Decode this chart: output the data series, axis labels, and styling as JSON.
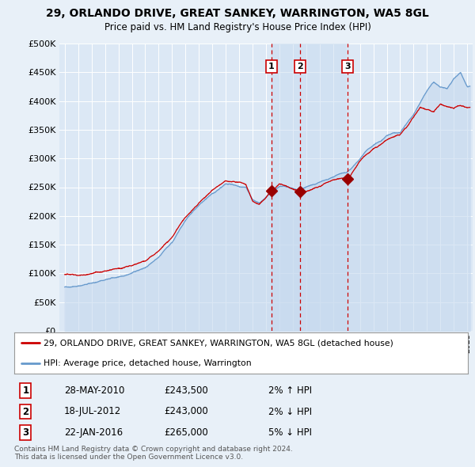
{
  "title": "29, ORLANDO DRIVE, GREAT SANKEY, WARRINGTON, WA5 8GL",
  "subtitle": "Price paid vs. HM Land Registry's House Price Index (HPI)",
  "ylim": [
    0,
    500000
  ],
  "yticks": [
    0,
    50000,
    100000,
    150000,
    200000,
    250000,
    300000,
    350000,
    400000,
    450000,
    500000
  ],
  "background_color": "#e8f0f8",
  "plot_bg": "#dce8f5",
  "grid_color": "#c8d8e8",
  "sale_color": "#cc0000",
  "hpi_color": "#6699cc",
  "hpi_fill_color": "#dce8f5",
  "vline_color": "#cc0000",
  "sale_marker_color": "#990000",
  "annotations": [
    {
      "num": 1,
      "year": 2010.41
    },
    {
      "num": 2,
      "year": 2012.54
    },
    {
      "num": 3,
      "year": 2016.06
    }
  ],
  "sale_years": [
    2010.41,
    2012.54,
    2016.06
  ],
  "sale_prices": [
    243500,
    243000,
    265000
  ],
  "legend_line1": "29, ORLANDO DRIVE, GREAT SANKEY, WARRINGTON, WA5 8GL (detached house)",
  "legend_line2": "HPI: Average price, detached house, Warrington",
  "footnote": "Contains HM Land Registry data © Crown copyright and database right 2024.\nThis data is licensed under the Open Government Licence v3.0.",
  "table_rows": [
    [
      "1",
      "28-MAY-2010",
      "£243,500",
      "2% ↑ HPI"
    ],
    [
      "2",
      "18-JUL-2012",
      "£243,000",
      "2% ↓ HPI"
    ],
    [
      "3",
      "22-JAN-2016",
      "£265,000",
      "5% ↓ HPI"
    ]
  ],
  "hpi_key_years": [
    1995,
    1996,
    1997,
    1998,
    1999,
    2000,
    2001,
    2002,
    2003,
    2004,
    2005,
    2006,
    2007,
    2008,
    2008.5,
    2009,
    2009.5,
    2010,
    2010.5,
    2011,
    2011.5,
    2012,
    2012.5,
    2013,
    2013.5,
    2014,
    2014.5,
    2015,
    2015.5,
    2016,
    2016.5,
    2017,
    2017.5,
    2018,
    2018.5,
    2019,
    2019.5,
    2020,
    2020.5,
    2021,
    2021.5,
    2022,
    2022.5,
    2023,
    2023.5,
    2024,
    2024.5,
    2025
  ],
  "hpi_key_values": [
    83000,
    86000,
    90000,
    95000,
    100000,
    108000,
    118000,
    135000,
    158000,
    195000,
    220000,
    240000,
    255000,
    250000,
    248000,
    225000,
    218000,
    230000,
    240000,
    248000,
    248000,
    245000,
    242000,
    248000,
    252000,
    255000,
    260000,
    265000,
    270000,
    272000,
    282000,
    295000,
    308000,
    318000,
    325000,
    335000,
    340000,
    342000,
    358000,
    375000,
    395000,
    415000,
    430000,
    420000,
    418000,
    435000,
    445000,
    420000
  ],
  "red_key_years": [
    1995,
    1996,
    1997,
    1998,
    1999,
    2000,
    2001,
    2002,
    2003,
    2004,
    2005,
    2006,
    2007,
    2008,
    2008.5,
    2009,
    2009.5,
    2010,
    2010.41,
    2010.5,
    2011,
    2011.5,
    2012,
    2012.54,
    2012.7,
    2013,
    2013.5,
    2014,
    2014.5,
    2015,
    2015.5,
    2016,
    2016.06,
    2016.5,
    2017,
    2017.5,
    2018,
    2018.5,
    2019,
    2019.5,
    2020,
    2020.5,
    2021,
    2021.5,
    2022,
    2022.5,
    2023,
    2023.5,
    2024,
    2024.5,
    2025
  ],
  "red_key_values": [
    85000,
    87000,
    91000,
    96000,
    101000,
    109000,
    119000,
    136000,
    160000,
    196000,
    221000,
    242000,
    258000,
    255000,
    252000,
    225000,
    220000,
    232000,
    243500,
    244000,
    255000,
    252000,
    248000,
    243000,
    240000,
    248000,
    252000,
    255000,
    260000,
    265000,
    268000,
    270000,
    265000,
    280000,
    298000,
    312000,
    322000,
    328000,
    338000,
    344000,
    348000,
    362000,
    380000,
    398000,
    392000,
    388000,
    402000,
    398000,
    395000,
    400000,
    395000
  ]
}
